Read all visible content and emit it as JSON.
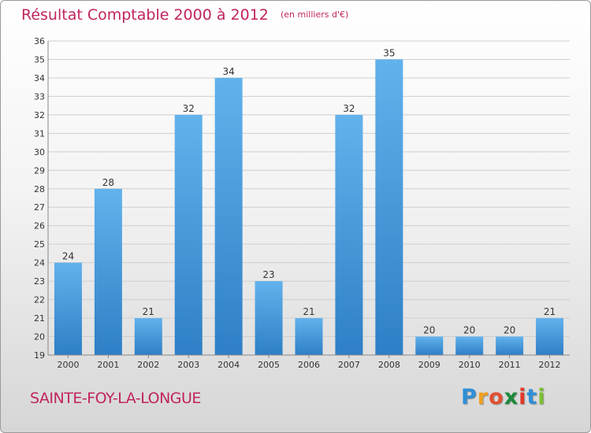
{
  "title": "Résultat Comptable 2000 à 2012",
  "subtitle": "(en milliers d'€)",
  "town": "SAINTE-FOY-LA-LONGUE",
  "logo": {
    "letters": [
      "P",
      "r",
      "o",
      "x",
      "i",
      "t",
      "i"
    ],
    "colors": [
      "#2f8fd8",
      "#f0a020",
      "#e05030",
      "#1c8a3a",
      "#e23a2a",
      "#2f8fd8",
      "#7cc030"
    ]
  },
  "colors": {
    "bar_light": "#62b2ec",
    "bar_dark": "#2e7fc6",
    "grid": "#cfcfcf",
    "text": "#333333"
  },
  "chart_data": {
    "type": "bar",
    "categories": [
      "2000",
      "2001",
      "2002",
      "2003",
      "2004",
      "2005",
      "2006",
      "2007",
      "2008",
      "2009",
      "2010",
      "2011",
      "2012"
    ],
    "values": [
      24,
      28,
      21,
      32,
      34,
      23,
      21,
      32,
      35,
      20,
      20,
      20,
      21
    ],
    "ylim": [
      19,
      36
    ],
    "yticks": [
      19,
      20,
      21,
      22,
      23,
      24,
      25,
      26,
      27,
      28,
      29,
      30,
      31,
      32,
      33,
      34,
      35,
      36
    ],
    "title": "Résultat Comptable 2000 à 2012",
    "xlabel": "",
    "ylabel": "",
    "grid": true
  }
}
